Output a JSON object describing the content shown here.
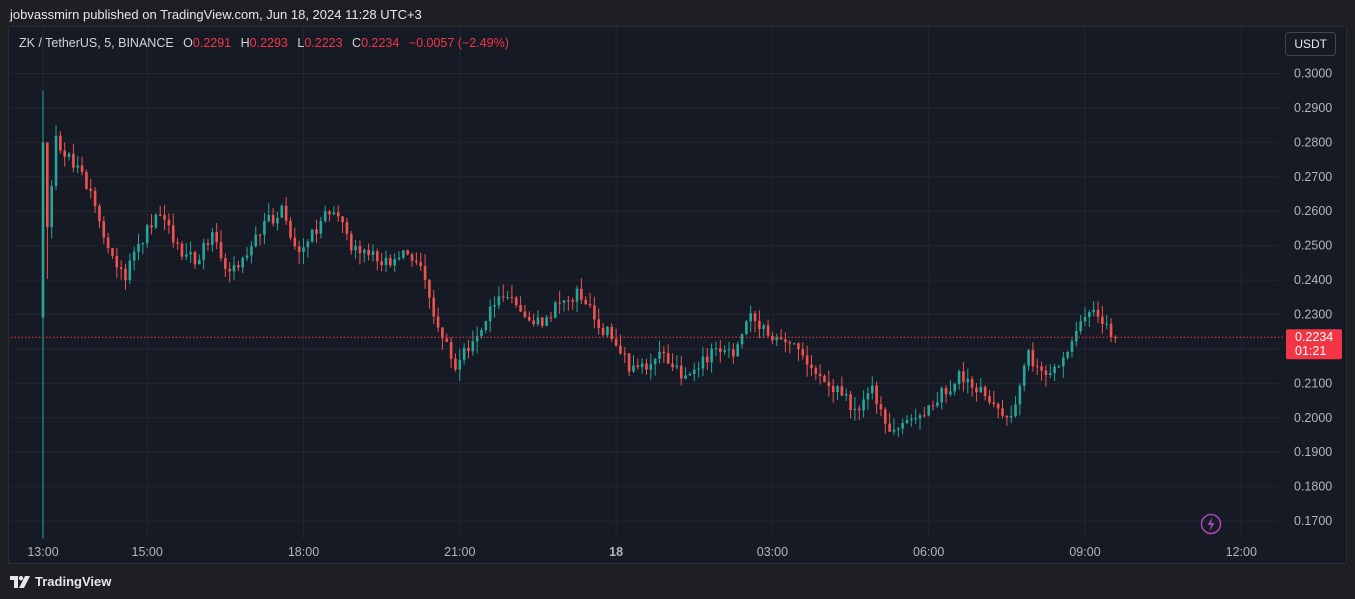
{
  "publish_line": "jobvassmirn published on TradingView.com, Jun 18, 2024 11:28 UTC+3",
  "footer": {
    "brand": "TradingView"
  },
  "toolbar": {
    "currency": "USDT"
  },
  "legend": {
    "symbol": "ZK / TetherUS, 5, BINANCE",
    "o_label": "O",
    "o_value": "0.2291",
    "h_label": "H",
    "h_value": "0.2293",
    "l_label": "L",
    "l_value": "0.2223",
    "c_label": "C",
    "c_value": "0.2234",
    "change": "−0.0057 (−2.49%)"
  },
  "colors": {
    "up": "#26a69a",
    "down": "#ef5350",
    "price_badge": "#f23645",
    "grid": "#232632",
    "axis_text": "#b2b5be"
  },
  "chart_data": {
    "type": "candlestick",
    "title": "",
    "xlabel": "",
    "ylabel": "",
    "ylim": [
      0.1648,
      0.3048
    ],
    "y_ticks": [
      "0.1700",
      "0.1800",
      "0.1900",
      "0.2000",
      "0.2100",
      "0.2200",
      "0.2300",
      "0.2400",
      "0.2500",
      "0.2600",
      "0.2700",
      "0.2800",
      "0.2900",
      "0.3000"
    ],
    "x_ticks": [
      {
        "label": "13:00",
        "hours": 0,
        "bold": false
      },
      {
        "label": "15:00",
        "hours": 2,
        "bold": false
      },
      {
        "label": "18:00",
        "hours": 5,
        "bold": false
      },
      {
        "label": "21:00",
        "hours": 8,
        "bold": false
      },
      {
        "label": "18",
        "hours": 11,
        "bold": true
      },
      {
        "label": "03:00",
        "hours": 14,
        "bold": false
      },
      {
        "label": "06:00",
        "hours": 17,
        "bold": false
      },
      {
        "label": "09:00",
        "hours": 20,
        "bold": false
      },
      {
        "label": "12:00",
        "hours": 23,
        "bold": false
      }
    ],
    "last_price": {
      "price": 0.2234,
      "label": "0.2234",
      "countdown": "01:21"
    },
    "grid": true,
    "series": [
      {
        "interval_minutes": 5,
        "start_hours": 0,
        "open": 0.2291,
        "close_path": [
          0.229,
          0.28,
          0.2745,
          0.265,
          0.249,
          0.241,
          0.252,
          0.26,
          0.25,
          0.245,
          0.253,
          0.242,
          0.247,
          0.256,
          0.26,
          0.248,
          0.255,
          0.261,
          0.25,
          0.249,
          0.245,
          0.248,
          0.243,
          0.227,
          0.216,
          0.221,
          0.231,
          0.237,
          0.23,
          0.227,
          0.234,
          0.236,
          0.229,
          0.223,
          0.215,
          0.214,
          0.219,
          0.212,
          0.216,
          0.219,
          0.218,
          0.229,
          0.225,
          0.221,
          0.219,
          0.211,
          0.208,
          0.202,
          0.208,
          0.194,
          0.2,
          0.2,
          0.207,
          0.212,
          0.209,
          0.205,
          0.2,
          0.218,
          0.213,
          0.217,
          0.228,
          0.23,
          0.2234
        ]
      }
    ]
  }
}
